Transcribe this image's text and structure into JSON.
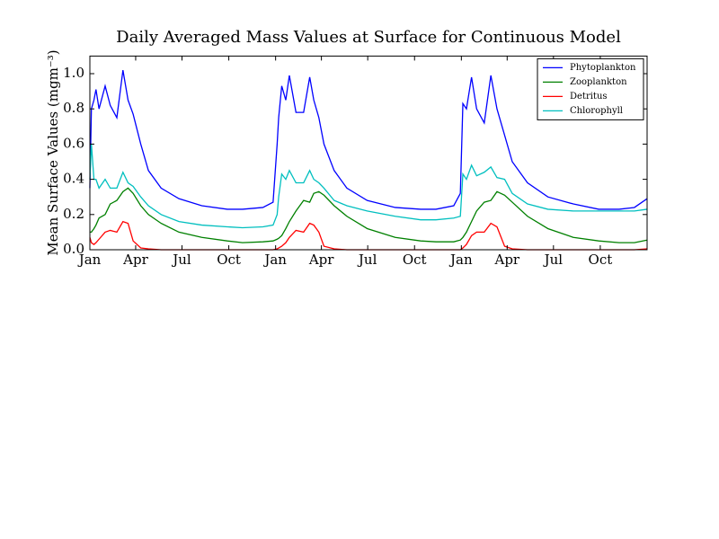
{
  "chart_data": {
    "type": "line",
    "title": "Daily Averaged Mass Values at Surface for Continuous Model",
    "y_label": "Mean Surface Values (mgm⁻³)",
    "x": [
      0,
      3,
      8,
      12,
      18,
      30,
      40,
      53,
      65,
      75,
      85,
      100,
      115,
      140,
      175,
      220,
      270,
      300,
      340,
      360,
      368,
      371,
      377,
      385,
      392,
      405,
      420,
      432,
      440,
      450,
      460,
      480,
      505,
      545,
      600,
      650,
      680,
      715,
      728,
      733,
      740,
      750,
      760,
      775,
      788,
      800,
      815,
      830,
      860,
      900,
      950,
      1000,
      1040,
      1070,
      1095
    ],
    "series": [
      {
        "name": "Phytoplankton",
        "color": "#0000ff",
        "values": [
          0.35,
          0.8,
          0.85,
          0.91,
          0.8,
          0.93,
          0.82,
          0.75,
          1.02,
          0.85,
          0.77,
          0.6,
          0.45,
          0.35,
          0.29,
          0.25,
          0.23,
          0.23,
          0.24,
          0.27,
          0.6,
          0.75,
          0.93,
          0.85,
          0.99,
          0.78,
          0.78,
          0.98,
          0.85,
          0.75,
          0.6,
          0.45,
          0.35,
          0.28,
          0.24,
          0.23,
          0.23,
          0.25,
          0.32,
          0.83,
          0.8,
          0.98,
          0.8,
          0.72,
          0.99,
          0.8,
          0.65,
          0.5,
          0.38,
          0.3,
          0.26,
          0.23,
          0.23,
          0.24,
          0.29
        ]
      },
      {
        "name": "Zooplankton",
        "color": "#008000",
        "values": [
          0.1,
          0.1,
          0.12,
          0.14,
          0.18,
          0.2,
          0.26,
          0.28,
          0.33,
          0.35,
          0.32,
          0.25,
          0.2,
          0.15,
          0.1,
          0.07,
          0.05,
          0.04,
          0.045,
          0.05,
          0.06,
          0.065,
          0.08,
          0.12,
          0.16,
          0.22,
          0.28,
          0.27,
          0.32,
          0.33,
          0.31,
          0.25,
          0.19,
          0.12,
          0.07,
          0.05,
          0.045,
          0.045,
          0.055,
          0.07,
          0.1,
          0.16,
          0.22,
          0.27,
          0.28,
          0.33,
          0.31,
          0.27,
          0.19,
          0.12,
          0.07,
          0.05,
          0.04,
          0.04,
          0.055
        ]
      },
      {
        "name": "Detritus",
        "color": "#ff0000",
        "values": [
          0.07,
          0.04,
          0.03,
          0.04,
          0.06,
          0.1,
          0.11,
          0.1,
          0.16,
          0.15,
          0.05,
          0.01,
          0.005,
          0,
          0,
          0,
          0,
          0,
          0,
          0,
          0.005,
          0.01,
          0.02,
          0.04,
          0.07,
          0.11,
          0.1,
          0.15,
          0.14,
          0.1,
          0.02,
          0.005,
          0,
          0,
          0,
          0,
          0,
          0,
          0,
          0.01,
          0.03,
          0.08,
          0.1,
          0.1,
          0.15,
          0.13,
          0.02,
          0.005,
          0,
          0,
          0,
          0,
          0,
          0,
          0.005
        ]
      },
      {
        "name": "Chlorophyll",
        "color": "#00bfbf",
        "values": [
          0.4,
          0.6,
          0.4,
          0.4,
          0.35,
          0.4,
          0.35,
          0.35,
          0.44,
          0.38,
          0.36,
          0.3,
          0.25,
          0.2,
          0.16,
          0.14,
          0.13,
          0.125,
          0.13,
          0.14,
          0.2,
          0.3,
          0.43,
          0.4,
          0.45,
          0.38,
          0.38,
          0.45,
          0.4,
          0.38,
          0.35,
          0.28,
          0.25,
          0.22,
          0.19,
          0.17,
          0.17,
          0.18,
          0.19,
          0.43,
          0.4,
          0.48,
          0.42,
          0.44,
          0.47,
          0.41,
          0.4,
          0.32,
          0.26,
          0.23,
          0.22,
          0.22,
          0.22,
          0.22,
          0.23
        ]
      }
    ],
    "xlim": [
      0,
      1095
    ],
    "xticks": [
      {
        "value": 0,
        "label": "Jan"
      },
      {
        "value": 90,
        "label": "Apr"
      },
      {
        "value": 181,
        "label": "Jul"
      },
      {
        "value": 273,
        "label": "Oct"
      },
      {
        "value": 365,
        "label": "Jan"
      },
      {
        "value": 455,
        "label": "Apr"
      },
      {
        "value": 546,
        "label": "Jul"
      },
      {
        "value": 638,
        "label": "Oct"
      },
      {
        "value": 730,
        "label": "Jan"
      },
      {
        "value": 820,
        "label": "Apr"
      },
      {
        "value": 911,
        "label": "Jul"
      },
      {
        "value": 1003,
        "label": "Oct"
      }
    ],
    "ylim": [
      0,
      1.1
    ],
    "yticks": [
      {
        "value": 0,
        "label": "0.0"
      },
      0.2,
      0.4,
      0.6,
      0.8,
      {
        "value": 1,
        "label": "1.0"
      }
    ],
    "grid": false,
    "legend": "upper-right"
  }
}
